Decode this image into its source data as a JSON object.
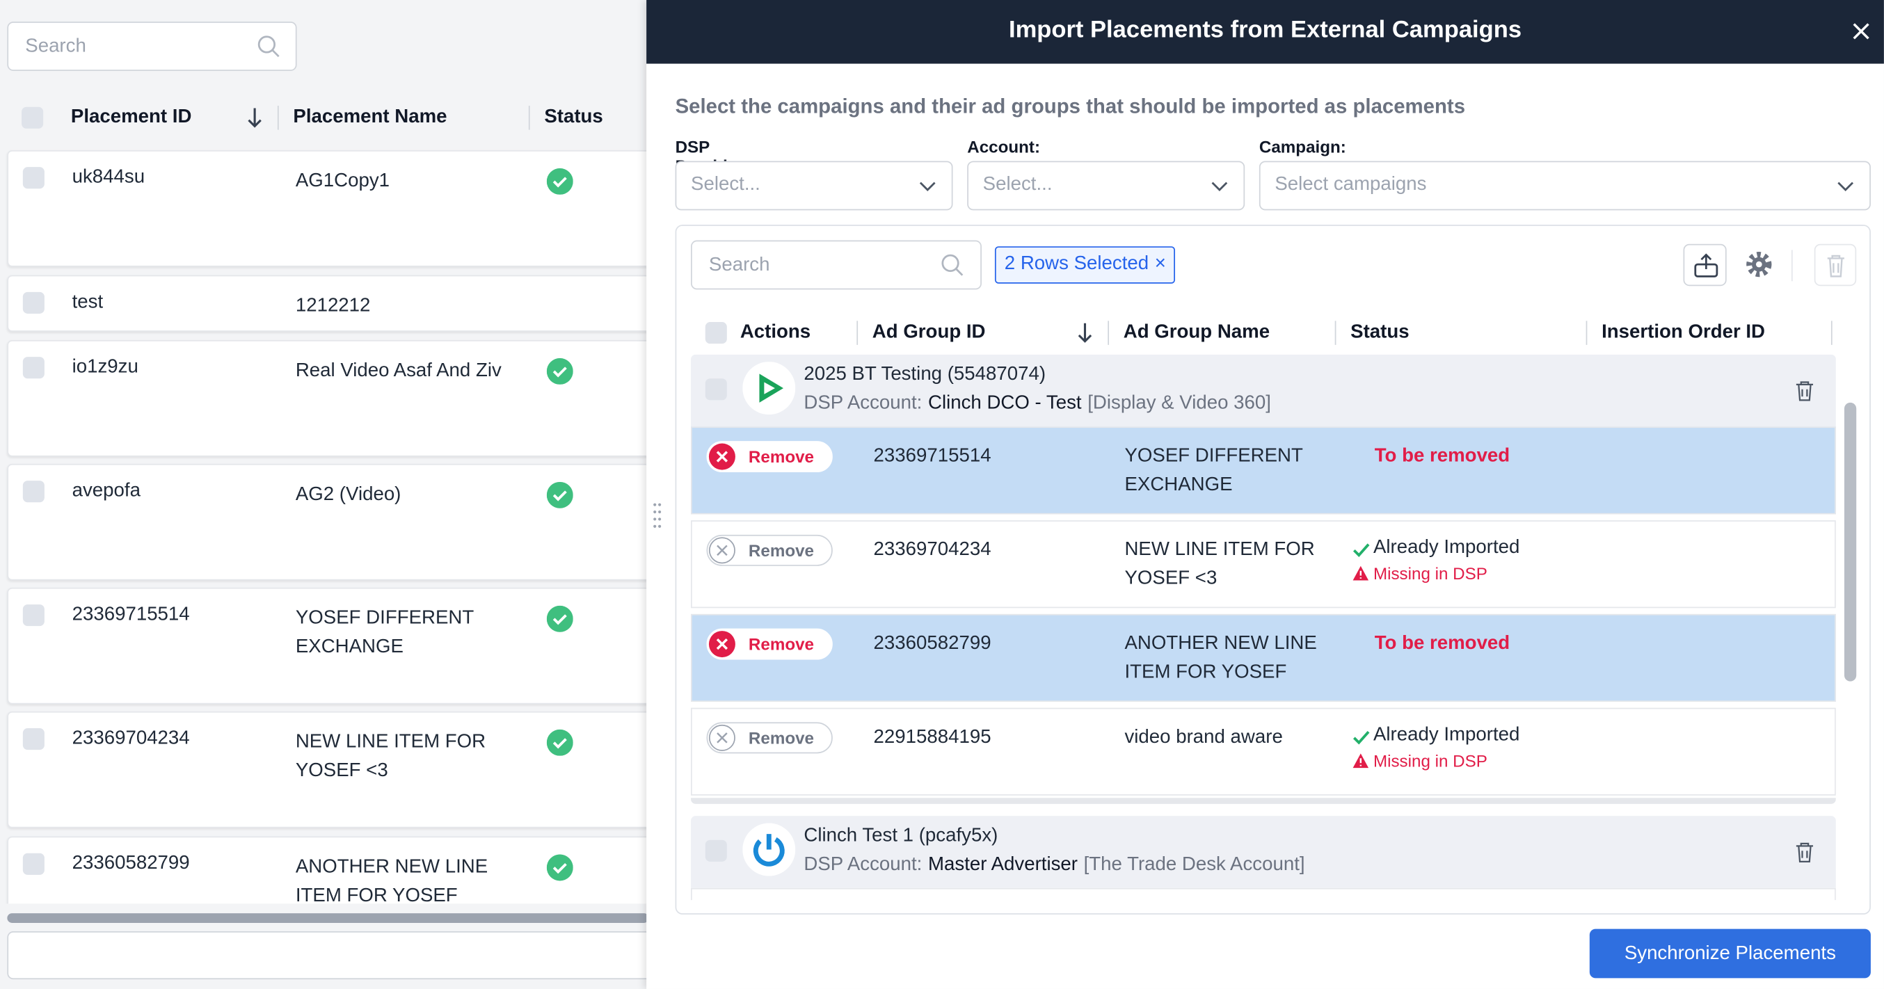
{
  "left": {
    "search_placeholder": "Search",
    "columns": [
      "Placement ID",
      "Placement Name",
      "Status"
    ],
    "rows": [
      [
        "uk844su",
        "AG1Copy1"
      ],
      [
        "test",
        "1212212"
      ],
      [
        "io1z9zu",
        "Real Video Asaf And Ziv"
      ],
      [
        "avepofa",
        "AG2 (Video)"
      ],
      [
        "23369715514",
        "YOSEF DIFFERENT EXCHANGE"
      ],
      [
        "23369704234",
        "NEW LINE ITEM FOR YOSEF <3"
      ],
      [
        "23360582799",
        "ANOTHER NEW LINE ITEM FOR YOSEF"
      ]
    ]
  },
  "modal": {
    "title": "Import Placements from External Campaigns",
    "instructions": "Select the campaigns and their ad groups that should be imported as placements",
    "filters": [
      {
        "label": "DSP Provider:",
        "placeholder": "Select..."
      },
      {
        "label": "Account:",
        "placeholder": "Select..."
      },
      {
        "label": "Campaign:",
        "placeholder": "Select campaigns"
      }
    ],
    "search_placeholder": "Search",
    "selection_chip": "2 Rows Selected",
    "columns": [
      "Actions",
      "Ad Group ID",
      "Ad Group Name",
      "Status",
      "Insertion Order ID"
    ],
    "campaigns": [
      {
        "name": "2025 BT Testing (55487074)",
        "account_label": "DSP Account:",
        "account": "Clinch DCO - Test",
        "account_type": "[Display & Video 360]",
        "rows": [
          {
            "action": "Remove",
            "id": "23369715514",
            "name": "YOSEF DIFFERENT EXCHANGE",
            "status": "To be removed"
          },
          {
            "action": "Remove",
            "id": "23369704234",
            "name": "NEW LINE ITEM FOR YOSEF <3",
            "status": "Already Imported",
            "warning": "Missing in DSP"
          },
          {
            "action": "Remove",
            "id": "23360582799",
            "name": "ANOTHER NEW LINE ITEM FOR YOSEF",
            "status": "To be removed"
          },
          {
            "action": "Remove",
            "id": "22915884195",
            "name": "video brand aware",
            "status": "Already Imported",
            "warning": "Missing in DSP"
          }
        ]
      },
      {
        "name": "Clinch Test 1 (pcafy5x)",
        "account_label": "DSP Account:",
        "account": "Master Advertiser",
        "account_type": "[The Trade Desk Account]",
        "rows": []
      }
    ],
    "submit": "Synchronize Placements"
  }
}
